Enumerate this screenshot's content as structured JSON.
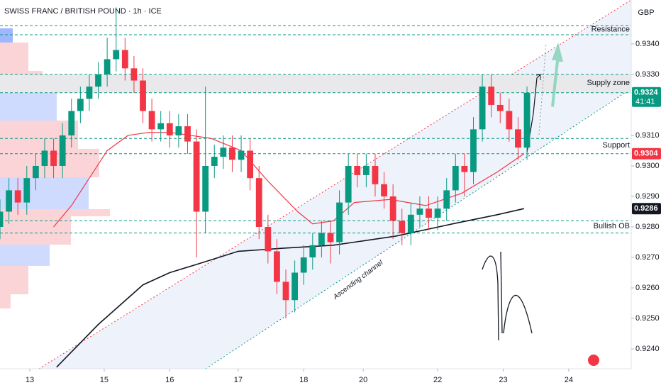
{
  "chart_data": {
    "type": "candlestick",
    "title": "SWISS FRANC / BRITISH POUND · 1h · ICE",
    "currency": "GBP",
    "channel_label": "Ascending channel",
    "up_color": "#089981",
    "down_color": "#f23645",
    "xlim": [
      0,
      212
    ],
    "ylim": [
      0.92335,
      0.93544
    ],
    "grid": false,
    "xticks": [
      {
        "value": 10,
        "label": "13"
      },
      {
        "value": 35,
        "label": "15"
      },
      {
        "value": 57,
        "label": "16"
      },
      {
        "value": 80,
        "label": "17"
      },
      {
        "value": 102,
        "label": "18"
      },
      {
        "value": 122,
        "label": "20"
      },
      {
        "value": 147,
        "label": "22"
      },
      {
        "value": 169,
        "label": "23"
      },
      {
        "value": 191,
        "label": "24"
      }
    ],
    "yticks": [
      {
        "value": 0.924,
        "label": "0.9240"
      },
      {
        "value": 0.925,
        "label": "0.9250"
      },
      {
        "value": 0.926,
        "label": "0.9260"
      },
      {
        "value": 0.927,
        "label": "0.9270"
      },
      {
        "value": 0.928,
        "label": "0.9280"
      },
      {
        "value": 0.929,
        "label": "0.9290"
      },
      {
        "value": 0.93,
        "label": "0.9300"
      },
      {
        "value": 0.931,
        "label": "0.9310"
      },
      {
        "value": 0.933,
        "label": "0.9330"
      },
      {
        "value": 0.934,
        "label": "0.9340"
      }
    ],
    "x": [
      0,
      3,
      6,
      9,
      12,
      15,
      18,
      21,
      24,
      27,
      30,
      33,
      36,
      39,
      42,
      45,
      48,
      51,
      54,
      57,
      60,
      63,
      66,
      69,
      72,
      75,
      78,
      81,
      84,
      87,
      90,
      93,
      96,
      99,
      102,
      105,
      108,
      111,
      114,
      117,
      120,
      123,
      126,
      129,
      132,
      135,
      138,
      141,
      144,
      147,
      150,
      153,
      156,
      159,
      162,
      165,
      168,
      171,
      174,
      177
    ],
    "open": [
      0.928,
      0.9285,
      0.9292,
      0.9288,
      0.9296,
      0.93,
      0.9305,
      0.93,
      0.931,
      0.9318,
      0.9322,
      0.9326,
      0.933,
      0.9335,
      0.9338,
      0.9332,
      0.9328,
      0.9318,
      0.9312,
      0.9314,
      0.931,
      0.9313,
      0.9308,
      0.9285,
      0.93,
      0.9303,
      0.9306,
      0.9302,
      0.9305,
      0.9296,
      0.928,
      0.9272,
      0.9262,
      0.9256,
      0.9265,
      0.927,
      0.9274,
      0.9278,
      0.9275,
      0.9288,
      0.93,
      0.9297,
      0.93,
      0.9294,
      0.929,
      0.9282,
      0.9278,
      0.9284,
      0.9286,
      0.9283,
      0.9286,
      0.9292,
      0.93,
      0.9298,
      0.9312,
      0.9326,
      0.932,
      0.9318,
      0.9312,
      0.9306
    ],
    "high": [
      0.9289,
      0.9296,
      0.9296,
      0.93,
      0.9304,
      0.9309,
      0.9309,
      0.9314,
      0.9322,
      0.9326,
      0.933,
      0.9334,
      0.9342,
      0.9352,
      0.9342,
      0.9336,
      0.9332,
      0.9322,
      0.9318,
      0.9318,
      0.9317,
      0.9317,
      0.9312,
      0.9326,
      0.9307,
      0.931,
      0.931,
      0.931,
      0.9309,
      0.93,
      0.9284,
      0.9276,
      0.9266,
      0.9269,
      0.9274,
      0.9278,
      0.9282,
      0.9282,
      0.9292,
      0.9304,
      0.9304,
      0.9304,
      0.9304,
      0.9298,
      0.9294,
      0.9286,
      0.9288,
      0.929,
      0.929,
      0.929,
      0.9296,
      0.9304,
      0.9304,
      0.9316,
      0.933,
      0.933,
      0.9324,
      0.9322,
      0.9316,
      0.9326
    ],
    "low": [
      0.9276,
      0.9281,
      0.9284,
      0.9284,
      0.9292,
      0.9296,
      0.9296,
      0.9296,
      0.9306,
      0.9314,
      0.9318,
      0.9322,
      0.9326,
      0.9331,
      0.9328,
      0.9324,
      0.9314,
      0.9308,
      0.9308,
      0.9306,
      0.9306,
      0.9304,
      0.927,
      0.9278,
      0.9296,
      0.9299,
      0.9298,
      0.9298,
      0.9292,
      0.9276,
      0.9268,
      0.9258,
      0.925,
      0.9252,
      0.9261,
      0.9266,
      0.927,
      0.9268,
      0.9271,
      0.9284,
      0.9293,
      0.9293,
      0.929,
      0.9286,
      0.9276,
      0.9274,
      0.9274,
      0.928,
      0.9279,
      0.9279,
      0.9282,
      0.9288,
      0.929,
      0.9294,
      0.9308,
      0.9316,
      0.9314,
      0.9308,
      0.9302,
      0.9302
    ],
    "close": [
      0.9285,
      0.9292,
      0.9288,
      0.9296,
      0.93,
      0.9305,
      0.93,
      0.931,
      0.9318,
      0.9322,
      0.9326,
      0.933,
      0.9335,
      0.9338,
      0.9332,
      0.9328,
      0.9318,
      0.9312,
      0.9314,
      0.931,
      0.9313,
      0.9308,
      0.9285,
      0.93,
      0.9303,
      0.9306,
      0.9302,
      0.9305,
      0.9296,
      0.928,
      0.9272,
      0.9262,
      0.9256,
      0.9265,
      0.927,
      0.9274,
      0.9278,
      0.9275,
      0.9288,
      0.93,
      0.9297,
      0.93,
      0.9294,
      0.929,
      0.9282,
      0.9278,
      0.9284,
      0.9286,
      0.9283,
      0.9286,
      0.9292,
      0.93,
      0.9298,
      0.9312,
      0.9326,
      0.932,
      0.9318,
      0.9312,
      0.9306,
      0.9324
    ],
    "lines": [
      {
        "color": "#f23645",
        "x": [
          18,
          24,
          30,
          36,
          43,
          50,
          57,
          64,
          71,
          81,
          90,
          100,
          105,
          112,
          119,
          131,
          143,
          155,
          167,
          176
        ],
        "values": [
          0.928,
          0.9287,
          0.9296,
          0.9305,
          0.931,
          0.9311,
          0.9311,
          0.931,
          0.9309,
          0.9305,
          0.9295,
          0.9285,
          0.9281,
          0.9282,
          0.9288,
          0.9289,
          0.9287,
          0.9291,
          0.9298,
          0.9304
        ]
      },
      {
        "color": "#131722",
        "x": [
          19,
          33,
          48,
          57,
          67,
          80,
          95,
          112,
          133,
          152,
          167,
          176
        ],
        "values": [
          0.9234,
          0.9248,
          0.9261,
          0.9265,
          0.9268,
          0.9272,
          0.9273,
          0.9274,
          0.9277,
          0.9281,
          0.9284,
          0.9286
        ]
      }
    ],
    "zones": [
      {
        "label": "Resistance",
        "top": 0.9346,
        "bottom": 0.9343,
        "shade": false
      },
      {
        "label": "Supply zone",
        "top": 0.933,
        "bottom": 0.9324,
        "shade": true
      },
      {
        "label": "Support",
        "top": 0.9309,
        "bottom": 0.9304,
        "shade": false
      },
      {
        "label": "Bullish OB",
        "top": 0.9282,
        "bottom": 0.9278,
        "shade": false
      }
    ],
    "price_labels": [
      {
        "value": 0.9324,
        "timer": "41:41",
        "color": "#089981"
      },
      {
        "value": 0.9304,
        "color": "#f23645"
      },
      {
        "value": 0.9286,
        "color": "#131722"
      }
    ]
  }
}
